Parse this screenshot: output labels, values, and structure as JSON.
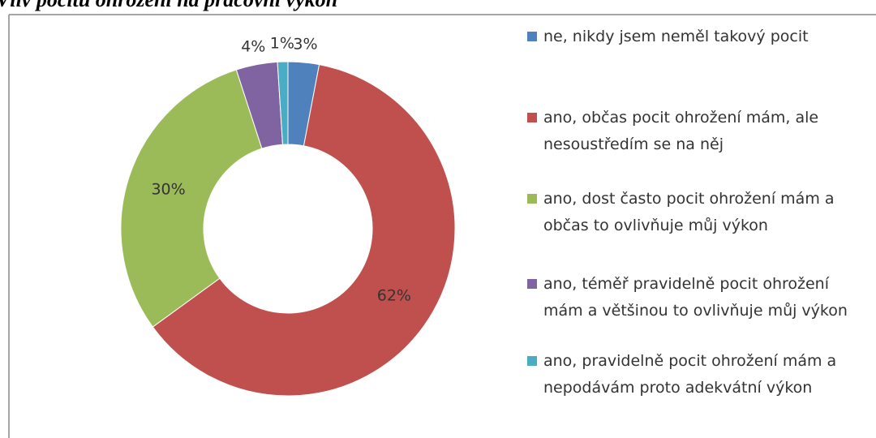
{
  "chart_data": {
    "type": "donut",
    "title": "Vliv pocitu ohrožení na pracovní výkon",
    "categories": [
      "ne, nikdy jsem neměl takový pocit",
      "ano, občas pocit ohrožení mám, ale nesoustředím se na něj",
      "ano, dost často pocit ohrožení mám a občas to ovlivňuje můj výkon",
      "ano, téměř pravidelně pocit ohrožení mám a většinou to ovlivňuje můj výkon",
      "ano, pravidelně pocit ohrožení mám a nepodávám proto adekvátní výkon"
    ],
    "values": [
      3,
      62,
      30,
      4,
      1
    ],
    "value_labels": [
      "3%",
      "62%",
      "30%",
      "4%",
      "1%"
    ],
    "colors": [
      "#4f81bd",
      "#c0504d",
      "#9bbb59",
      "#8064a2",
      "#4bacc6"
    ],
    "legend": "right"
  }
}
